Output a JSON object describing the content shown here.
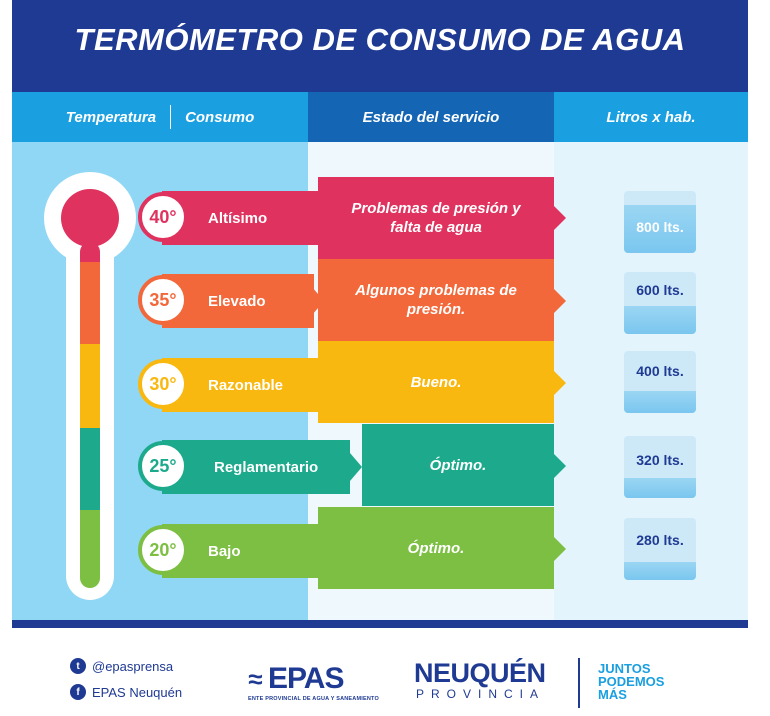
{
  "title": "TERMÓMETRO DE CONSUMO DE AGUA",
  "columns": {
    "temperatura": "Temperatura",
    "consumo": "Consumo",
    "estado": "Estado del servicio",
    "litros": "Litros x hab."
  },
  "rows": [
    {
      "temp": "40°",
      "level": "Altísimo",
      "state": "Problemas de presión y falta de agua",
      "liters": "800 lts.",
      "color": "#e0325e"
    },
    {
      "temp": "35°",
      "level": "Elevado",
      "state": "Algunos problemas de presión.",
      "liters": "600 lts.",
      "color": "#f2683a"
    },
    {
      "temp": "30°",
      "level": "Razonable",
      "state": "Bueno.",
      "liters": "400 lts.",
      "color": "#f9b80f"
    },
    {
      "temp": "25°",
      "level": "Reglamentario",
      "state": "Óptimo.",
      "liters": "320 lts.",
      "color": "#1daa8c"
    },
    {
      "temp": "20°",
      "level": "Bajo",
      "state": "Óptimo.",
      "liters": "280 lts.",
      "color": "#7cbf42"
    }
  ],
  "footer": {
    "twitter": "@epasprensa",
    "facebook": "EPAS Neuquén",
    "epas_name": "EPAS",
    "epas_sub": "ENTE PROVINCIAL DE AGUA Y SANEAMIENTO",
    "neuquen": "NEUQUÉN",
    "provincia": "PROVINCIA",
    "slogan_1": "JUNTOS",
    "slogan_2": "PODEMOS",
    "slogan_3": "MÁS"
  },
  "icons": {
    "twitter": "twitter-icon",
    "facebook": "facebook-icon"
  }
}
